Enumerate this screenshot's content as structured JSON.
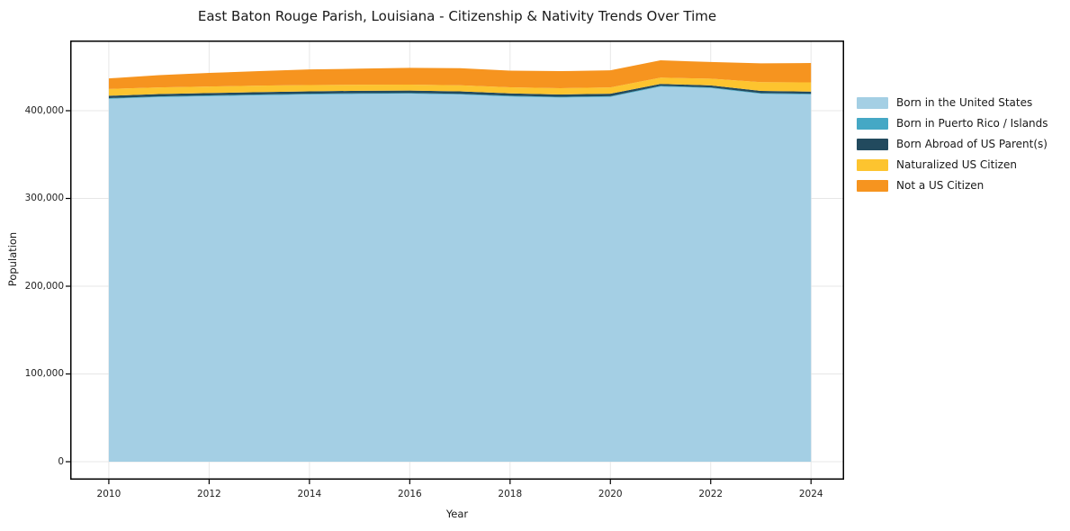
{
  "figure": {
    "background": "#ffffff",
    "spine_color": "#000000",
    "text_color": "#191919",
    "tick_label_color": "#222222"
  },
  "chart_data": {
    "type": "area",
    "stacked": true,
    "title": "East Baton Rouge Parish, Louisiana - Citizenship & Nativity Trends Over Time",
    "xlabel": "Year",
    "ylabel": "Population",
    "grid": true,
    "grid_color": "#e7e7e7",
    "legend_position": "outside-right",
    "xlim": [
      2009.23,
      2024.66
    ],
    "ylim": [
      -20500,
      480000
    ],
    "x": [
      2010,
      2011,
      2012,
      2013,
      2014,
      2015,
      2016,
      2017,
      2018,
      2019,
      2020,
      2021,
      2022,
      2023,
      2024
    ],
    "x_ticks": [
      2010,
      2012,
      2014,
      2016,
      2018,
      2020,
      2022,
      2024
    ],
    "x_tick_labels": [
      "2010",
      "2012",
      "2014",
      "2016",
      "2018",
      "2020",
      "2022",
      "2024"
    ],
    "y_ticks": [
      0,
      100000,
      200000,
      300000,
      400000
    ],
    "y_tick_labels": [
      "0",
      "100,000",
      "200,000",
      "300,000",
      "400,000"
    ],
    "series": [
      {
        "name": "Born in the United States",
        "color": "#a4cfe4",
        "values": [
          413500,
          415500,
          416600,
          417600,
          418500,
          419100,
          419300,
          418400,
          416200,
          415000,
          415800,
          427500,
          425800,
          419200,
          418500
        ]
      },
      {
        "name": "Born in Puerto Rico / Islands",
        "color": "#45a8c5",
        "values": [
          800,
          800,
          800,
          800,
          800,
          800,
          800,
          800,
          800,
          800,
          800,
          800,
          800,
          800,
          800
        ]
      },
      {
        "name": "Born Abroad of US Parent(s)",
        "color": "#224a5e",
        "values": [
          2700,
          2700,
          2700,
          2800,
          2800,
          2800,
          2800,
          2800,
          2700,
          2700,
          2700,
          2200,
          2300,
          2600,
          2500
        ]
      },
      {
        "name": "Naturalized US Citizen",
        "color": "#fdc42f",
        "values": [
          7800,
          7500,
          7500,
          7400,
          7100,
          6900,
          6900,
          7000,
          7000,
          7200,
          7200,
          7200,
          7600,
          10000,
          10500
        ]
      },
      {
        "name": "Not a US Citizen",
        "color": "#f6941f",
        "values": [
          12000,
          14000,
          15500,
          16500,
          17800,
          18300,
          19100,
          19400,
          19000,
          19400,
          19500,
          19700,
          19000,
          21400,
          22000
        ]
      }
    ]
  }
}
